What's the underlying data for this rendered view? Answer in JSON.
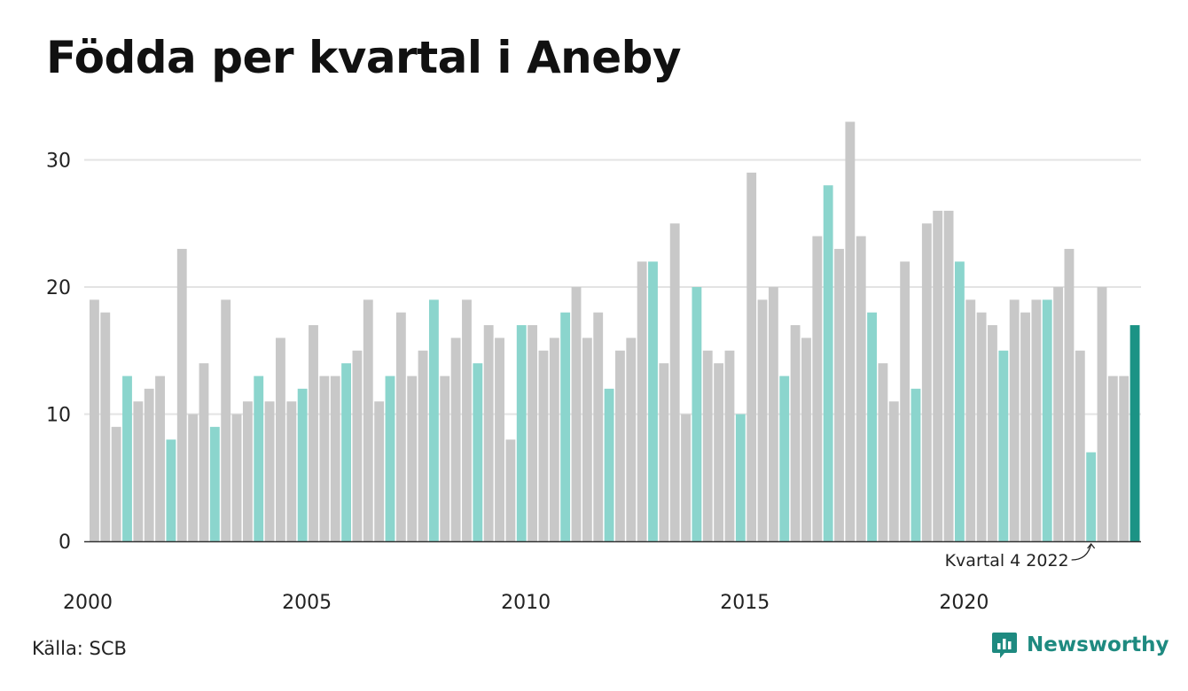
{
  "title": "Födda per kvartal i Aneby",
  "source": "Källa: SCB",
  "brand": "Newsworthy",
  "colors": {
    "default": "#c8c8c8",
    "highlight": "#8bd5cd",
    "latest": "#1b9385",
    "grid": "#e3e3e3",
    "axis": "#333333",
    "brand": "#1e8a80"
  },
  "chart_data": {
    "type": "bar",
    "title": "Födda per kvartal i Aneby",
    "xlabel": "",
    "ylabel": "",
    "ylim": [
      0,
      33
    ],
    "yticks": [
      0,
      10,
      20,
      30
    ],
    "xtick_labels": [
      "2000",
      "2005",
      "2010",
      "2015",
      "2020"
    ],
    "grid": true,
    "categories": [
      "2000 K1",
      "2000 K2",
      "2000 K3",
      "2000 K4",
      "2001 K1",
      "2001 K2",
      "2001 K3",
      "2001 K4",
      "2002 K1",
      "2002 K2",
      "2002 K3",
      "2002 K4",
      "2003 K1",
      "2003 K2",
      "2003 K3",
      "2003 K4",
      "2004 K1",
      "2004 K2",
      "2004 K3",
      "2004 K4",
      "2005 K1",
      "2005 K2",
      "2005 K3",
      "2005 K4",
      "2006 K1",
      "2006 K2",
      "2006 K3",
      "2006 K4",
      "2007 K1",
      "2007 K2",
      "2007 K3",
      "2007 K4",
      "2008 K1",
      "2008 K2",
      "2008 K3",
      "2008 K4",
      "2009 K1",
      "2009 K2",
      "2009 K3",
      "2009 K4",
      "2010 K1",
      "2010 K2",
      "2010 K3",
      "2010 K4",
      "2011 K1",
      "2011 K2",
      "2011 K3",
      "2011 K4",
      "2012 K1",
      "2012 K2",
      "2012 K3",
      "2012 K4",
      "2013 K1",
      "2013 K2",
      "2013 K3",
      "2013 K4",
      "2014 K1",
      "2014 K2",
      "2014 K3",
      "2014 K4",
      "2015 K1",
      "2015 K2",
      "2015 K3",
      "2015 K4",
      "2016 K1",
      "2016 K2",
      "2016 K3",
      "2016 K4",
      "2017 K1",
      "2017 K2",
      "2017 K3",
      "2017 K4",
      "2018 K1",
      "2018 K2",
      "2018 K3",
      "2018 K4",
      "2019 K1",
      "2019 K2",
      "2019 K3",
      "2019 K4",
      "2020 K1",
      "2020 K2",
      "2020 K3",
      "2020 K4",
      "2021 K1",
      "2021 K2",
      "2021 K3",
      "2021 K4",
      "2022 K1",
      "2022 K2",
      "2022 K3",
      "2022 K4",
      "2023 K1",
      "2023 K2",
      "2023 K3",
      "2023 K4"
    ],
    "values": [
      19,
      18,
      9,
      13,
      11,
      12,
      13,
      8,
      23,
      10,
      14,
      9,
      19,
      10,
      11,
      13,
      11,
      16,
      11,
      12,
      17,
      13,
      13,
      14,
      15,
      19,
      11,
      13,
      18,
      13,
      15,
      19,
      13,
      16,
      19,
      14,
      17,
      16,
      8,
      17,
      17,
      15,
      16,
      18,
      20,
      16,
      18,
      12,
      15,
      16,
      22,
      22,
      14,
      25,
      10,
      20,
      15,
      14,
      15,
      10,
      29,
      19,
      20,
      13,
      17,
      16,
      24,
      28,
      23,
      33,
      24,
      18,
      14,
      11,
      22,
      12,
      25,
      26,
      26,
      22,
      19,
      18,
      17,
      15,
      19,
      18,
      19,
      19,
      20,
      23,
      15,
      7,
      20,
      13,
      13,
      17
    ],
    "highlight_quarter": "K4",
    "annotation": "Kvartal 4 2022"
  }
}
